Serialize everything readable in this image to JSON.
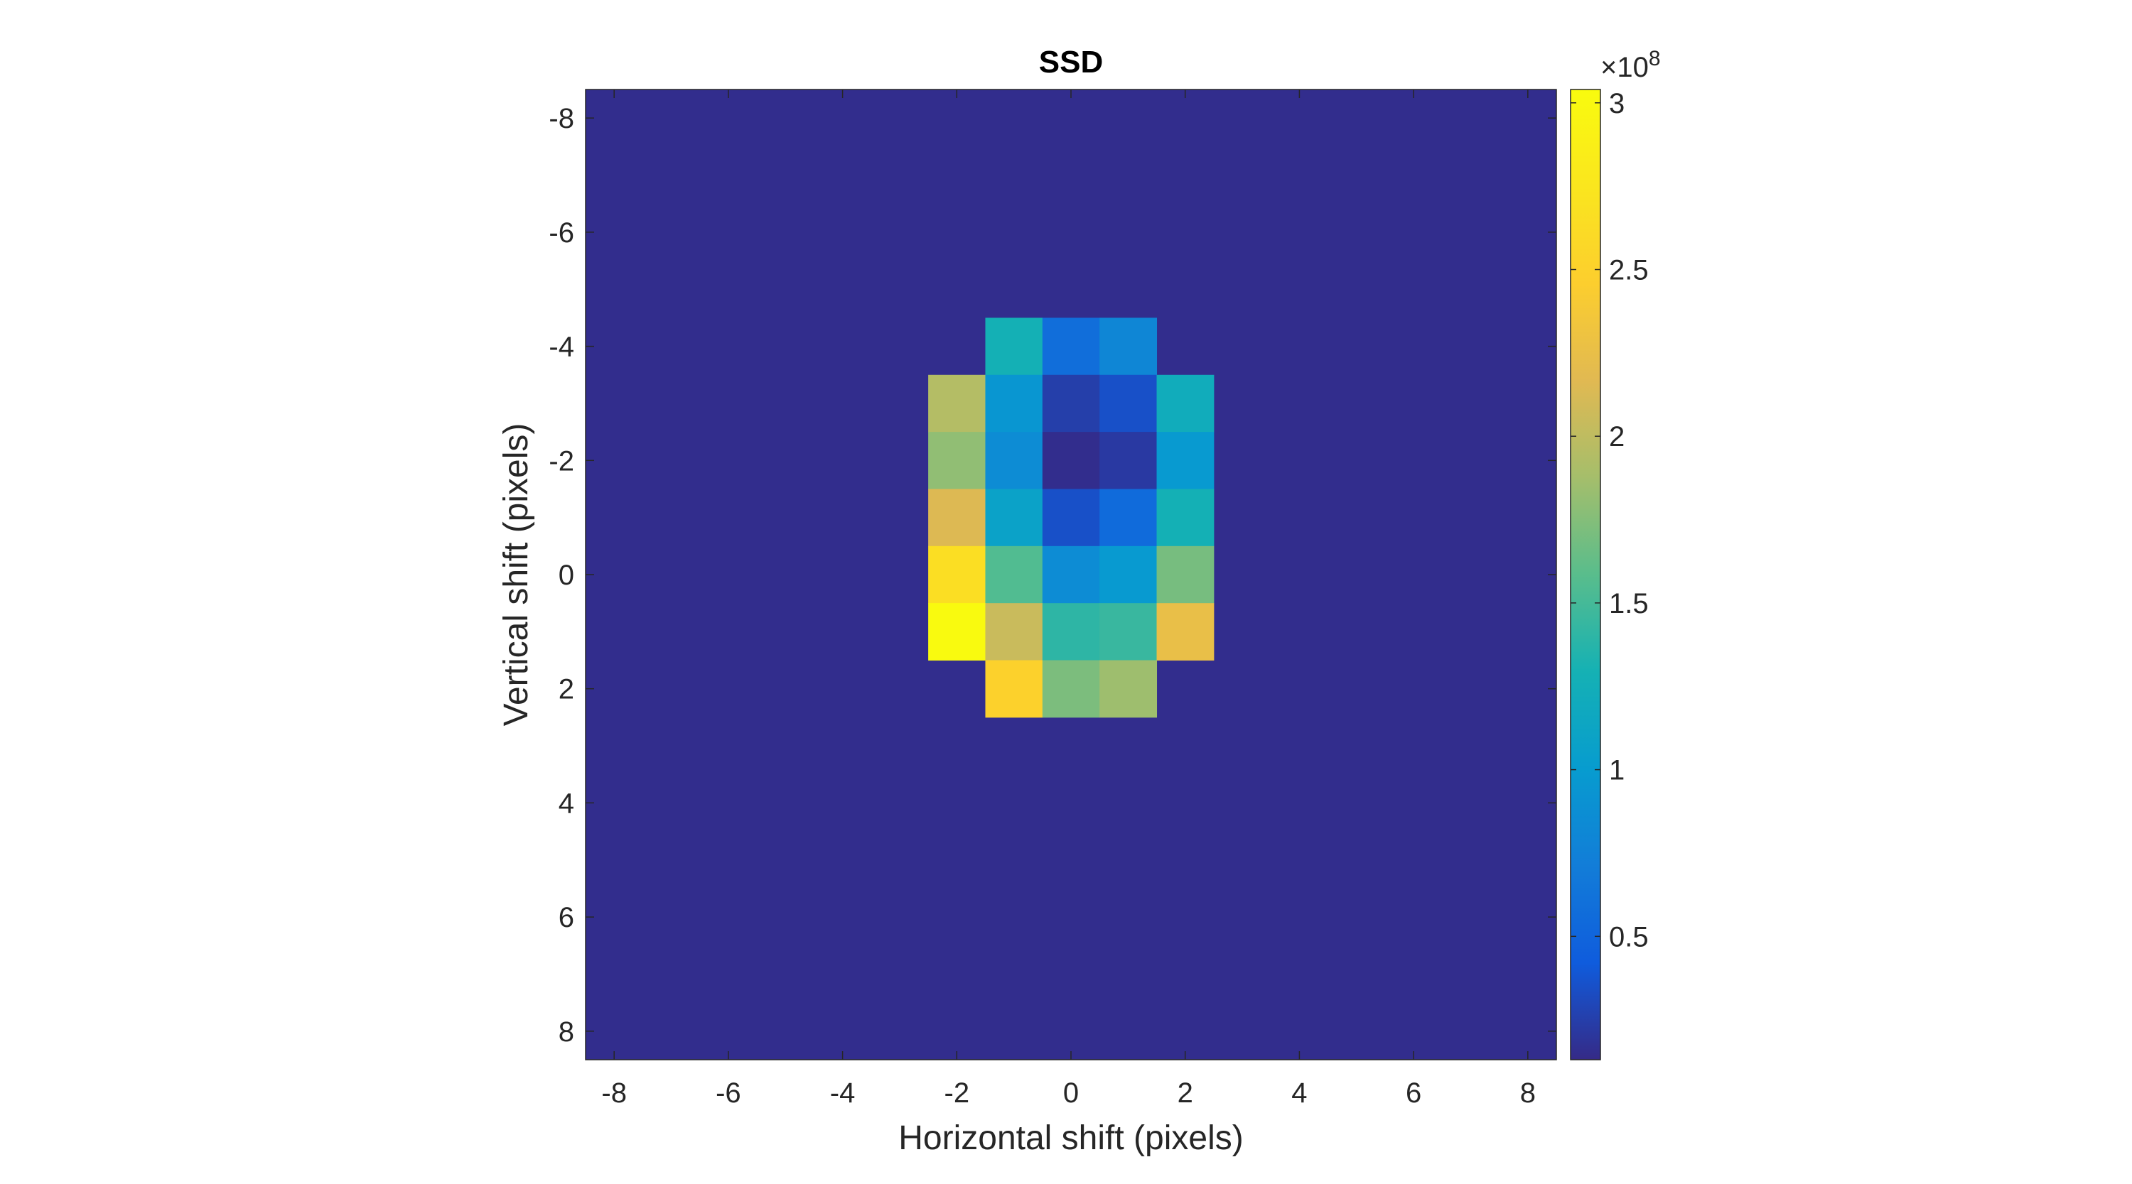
{
  "chart_data": {
    "type": "heatmap",
    "title": "SSD",
    "xlabel": "Horizontal shift (pixels)",
    "ylabel": "Vertical shift (pixels)",
    "xlim": [
      -8.5,
      8.5
    ],
    "ylim": [
      -8.5,
      8.5
    ],
    "y_reversed": true,
    "x": [
      -8,
      -7,
      -6,
      -5,
      -4,
      -3,
      -2,
      -1,
      0,
      1,
      2,
      3,
      4,
      5,
      6,
      7,
      8
    ],
    "y": [
      -8,
      -7,
      -6,
      -5,
      -4,
      -3,
      -2,
      -1,
      0,
      1,
      2,
      3,
      4,
      5,
      6,
      7,
      8
    ],
    "x_ticks": [
      "-8",
      "-6",
      "-4",
      "-2",
      "0",
      "2",
      "4",
      "6",
      "8"
    ],
    "y_ticks": [
      "-8",
      "-6",
      "-4",
      "-2",
      "0",
      "2",
      "4",
      "6",
      "8"
    ],
    "background_value": 0.15,
    "cells": [
      {
        "x": -1,
        "y": -4,
        "v": 1.28
      },
      {
        "x": 0,
        "y": -4,
        "v": 0.58
      },
      {
        "x": 1,
        "y": -4,
        "v": 0.8
      },
      {
        "x": -2,
        "y": -3,
        "v": 1.95
      },
      {
        "x": -1,
        "y": -3,
        "v": 0.95
      },
      {
        "x": 0,
        "y": -3,
        "v": 0.25
      },
      {
        "x": 1,
        "y": -3,
        "v": 0.35
      },
      {
        "x": 2,
        "y": -3,
        "v": 1.22
      },
      {
        "x": -2,
        "y": -2,
        "v": 1.8
      },
      {
        "x": -1,
        "y": -2,
        "v": 0.85
      },
      {
        "x": 0,
        "y": -2,
        "v": 0.15
      },
      {
        "x": 1,
        "y": -2,
        "v": 0.22
      },
      {
        "x": 2,
        "y": -2,
        "v": 0.98
      },
      {
        "x": -2,
        "y": -1,
        "v": 2.15
      },
      {
        "x": -1,
        "y": -1,
        "v": 1.08
      },
      {
        "x": 0,
        "y": -1,
        "v": 0.35
      },
      {
        "x": 1,
        "y": -1,
        "v": 0.55
      },
      {
        "x": 2,
        "y": -1,
        "v": 1.28
      },
      {
        "x": -2,
        "y": 0,
        "v": 2.65
      },
      {
        "x": -1,
        "y": 0,
        "v": 1.55
      },
      {
        "x": 0,
        "y": 0,
        "v": 0.85
      },
      {
        "x": 1,
        "y": 0,
        "v": 0.98
      },
      {
        "x": 2,
        "y": 0,
        "v": 1.7
      },
      {
        "x": -2,
        "y": 1,
        "v": 3.03
      },
      {
        "x": -1,
        "y": 1,
        "v": 2.05
      },
      {
        "x": 0,
        "y": 1,
        "v": 1.4
      },
      {
        "x": 1,
        "y": 1,
        "v": 1.45
      },
      {
        "x": 2,
        "y": 1,
        "v": 2.25
      },
      {
        "x": -1,
        "y": 2,
        "v": 2.5
      },
      {
        "x": 0,
        "y": 2,
        "v": 1.72
      },
      {
        "x": 1,
        "y": 2,
        "v": 1.85
      }
    ],
    "colorbar": {
      "colormap": "parula",
      "min": 0.13,
      "max": 3.04,
      "ticks": [
        0.5,
        1,
        1.5,
        2,
        2.5,
        3
      ],
      "tick_labels": [
        "0.5",
        "1",
        "1.5",
        "2",
        "2.5",
        "3"
      ],
      "multiplier_base": "×10",
      "multiplier_exp": "8"
    },
    "grid": false,
    "legend": "none"
  }
}
